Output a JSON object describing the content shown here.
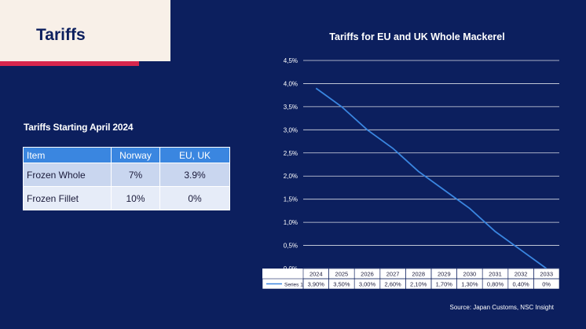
{
  "slide": {
    "title": "Tariffs",
    "table_heading": "Tariffs Starting April 2024",
    "source": "Source: Japan Customs, NSC Insight"
  },
  "table": {
    "headers": [
      "Item",
      "Norway",
      "EU, UK"
    ],
    "rows": [
      [
        "Frozen Whole",
        "7%",
        "3.9%"
      ],
      [
        "Frozen Fillet",
        "10%",
        "0%"
      ]
    ]
  },
  "colors": {
    "background": "#0c1f5e",
    "title_box": "#f8f0e8",
    "accent_bar": "#d7264d",
    "table_header": "#3a86e0",
    "line": "#3a86e0"
  },
  "chart_data": {
    "type": "line",
    "title": "Tariffs for EU and UK Whole Mackerel",
    "categories": [
      "2024",
      "2025",
      "2026",
      "2027",
      "2028",
      "2029",
      "2030",
      "2031",
      "2032",
      "2033"
    ],
    "series": [
      {
        "name": "Series 1",
        "values": [
          3.9,
          3.5,
          3.0,
          2.6,
          2.1,
          1.7,
          1.3,
          0.8,
          0.4,
          0.0
        ],
        "labels": [
          "3,90%",
          "3,50%",
          "3,00%",
          "2,60%",
          "2,10%",
          "1,70%",
          "1,30%",
          "0,80%",
          "0,40%",
          "0%"
        ]
      }
    ],
    "ylim": [
      0,
      4.5
    ],
    "yticks": [
      "0,0%",
      "0,5%",
      "1,0%",
      "1,5%",
      "2,0%",
      "2,5%",
      "3,0%",
      "3,5%",
      "4,0%",
      "4,5%"
    ],
    "grid": true,
    "legend": "data-table"
  }
}
